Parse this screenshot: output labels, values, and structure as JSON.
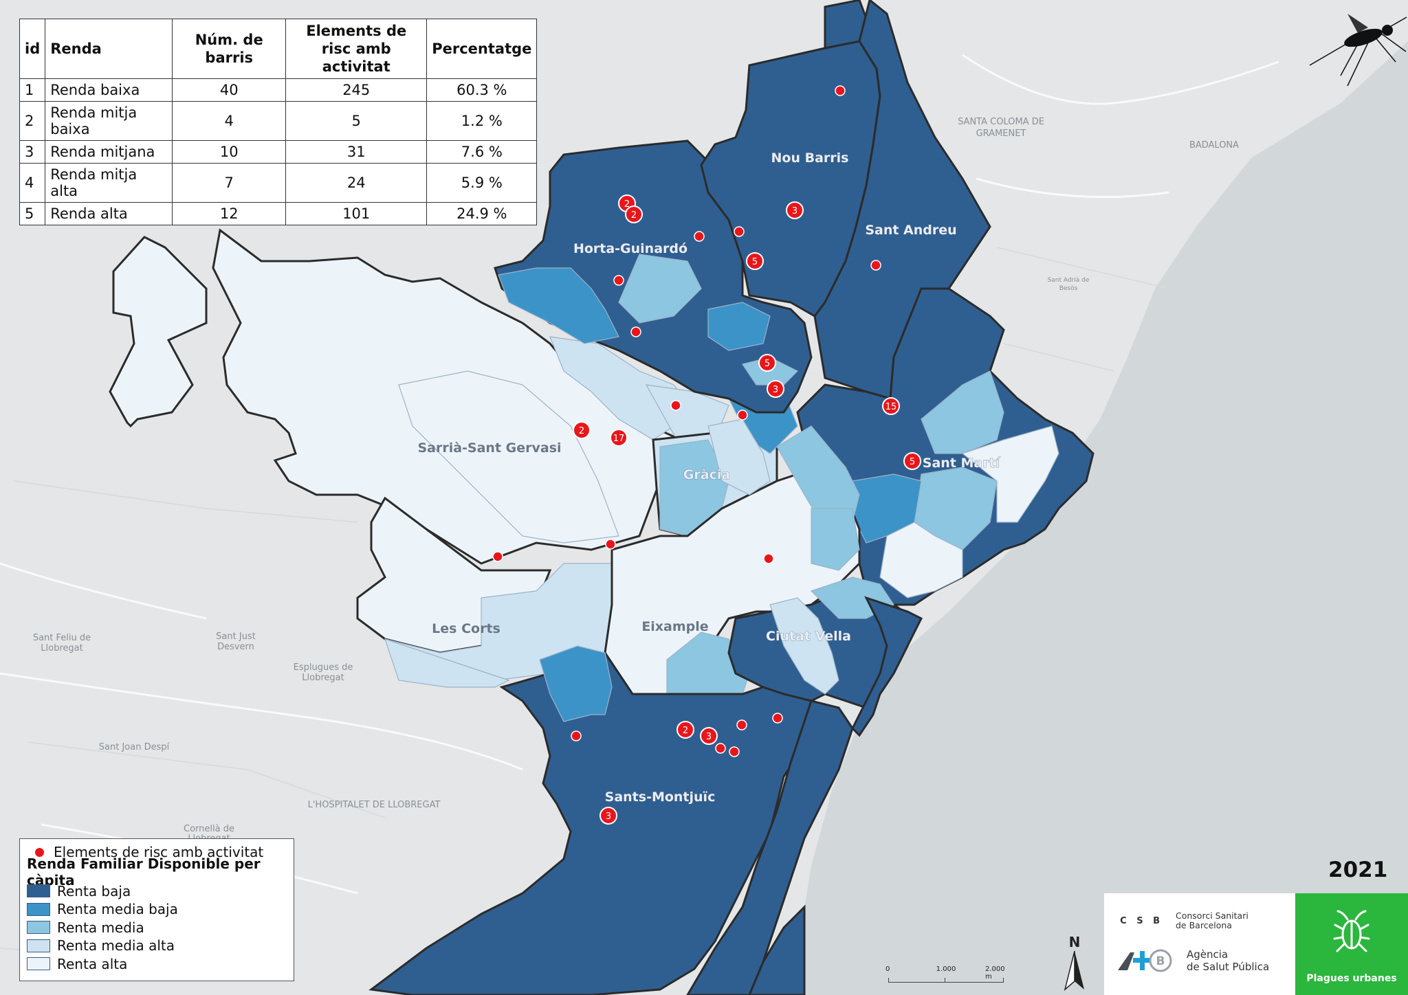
{
  "table": {
    "headers": [
      "id",
      "Renda",
      "Núm. de barris",
      "Elements de risc amb activitat",
      "Percentatge"
    ],
    "rows": [
      {
        "id": "1",
        "renda": "Renda baixa",
        "barris": "40",
        "elements": "245",
        "pct": "60.3 %"
      },
      {
        "id": "2",
        "renda": "Renda mitja baixa",
        "barris": "4",
        "elements": "5",
        "pct": "1.2 %"
      },
      {
        "id": "3",
        "renda": "Renda mitjana",
        "barris": "10",
        "elements": "31",
        "pct": "7.6 %"
      },
      {
        "id": "4",
        "renda": "Renda mitja alta",
        "barris": "7",
        "elements": "24",
        "pct": "5.9 %"
      },
      {
        "id": "5",
        "renda": "Renda alta",
        "barris": "12",
        "elements": "101",
        "pct": "24.9 %"
      }
    ]
  },
  "districts": {
    "nou_barris": "Nou Barris",
    "sant_andreu": "Sant Andreu",
    "horta_guinardo": "Horta-Guinardó",
    "sarria_sant_gervasi": "Sarrià-Sant Gervasi",
    "gracia": "Gràcia",
    "sant_marti": "Sant Martí",
    "les_corts": "Les Corts",
    "eixample": "Eixample",
    "ciutat_vella": "Ciutat Vella",
    "sants_montjuic": "Sants-Montjuïc"
  },
  "places": {
    "santa_coloma": "SANTA COLOMA DE",
    "gramenet": "GRAMENET",
    "badalona": "BADALONA",
    "hospitalet": "L'HOSPITALET DE LLOBREGAT",
    "sant_feliu": "Sant Feliu de",
    "sant_feliu_2": "Llobregat",
    "sant_just": "Sant Just",
    "sant_just_2": "Desvern",
    "esplugues": "Esplugues de",
    "esplugues_2": "Llobregat",
    "sant_joan_despi": "Sant Joan Despí",
    "cornella": "Cornellà de",
    "cornella_2": "Llobregat",
    "sant_adria": "Sant Adrià de",
    "sant_adria_2": "Besòs"
  },
  "risk_markers": [
    {
      "count": "2"
    },
    {
      "count": "2"
    },
    {
      "count": "3"
    },
    {
      "count": "5"
    },
    {
      "count": "5"
    },
    {
      "count": "3"
    },
    {
      "count": "15"
    },
    {
      "count": "5"
    },
    {
      "count": "2"
    },
    {
      "count": "17"
    },
    {
      "count": "2"
    },
    {
      "count": "3"
    },
    {
      "count": "3"
    }
  ],
  "legend": {
    "points_label": "Elements de risc amb activitat",
    "title": "Renda Familiar Disponible per càpita",
    "classes": [
      {
        "label": "Renta baja",
        "color": "#2f5f91"
      },
      {
        "label": "Renta media baja",
        "color": "#3c93c8"
      },
      {
        "label": "Renta media",
        "color": "#8cc6e1"
      },
      {
        "label": "Renta media alta",
        "color": "#cde3f1"
      },
      {
        "label": "Renta alta",
        "color": "#edf4f9"
      }
    ]
  },
  "year": "2021",
  "scale": {
    "labels": [
      "0",
      "1.000",
      "2.000 m"
    ]
  },
  "north_label": "N",
  "logos": {
    "csb_mark": "C S B",
    "csb_name_1": "Consorci Sanitari",
    "csb_name_2": "de Barcelona",
    "aspb_name_1": "Agència",
    "aspb_name_2": "de Salut Pública",
    "plagues": "Plagues urbanes"
  },
  "colors": {
    "low": "#2f5f91",
    "mid_low": "#3c93c8",
    "mid": "#8cc6e1",
    "mid_high": "#cde3f1",
    "high": "#edf4f9",
    "marker": "#e8161b",
    "sea": "#d2d7da",
    "land": "#e4e6e7"
  }
}
